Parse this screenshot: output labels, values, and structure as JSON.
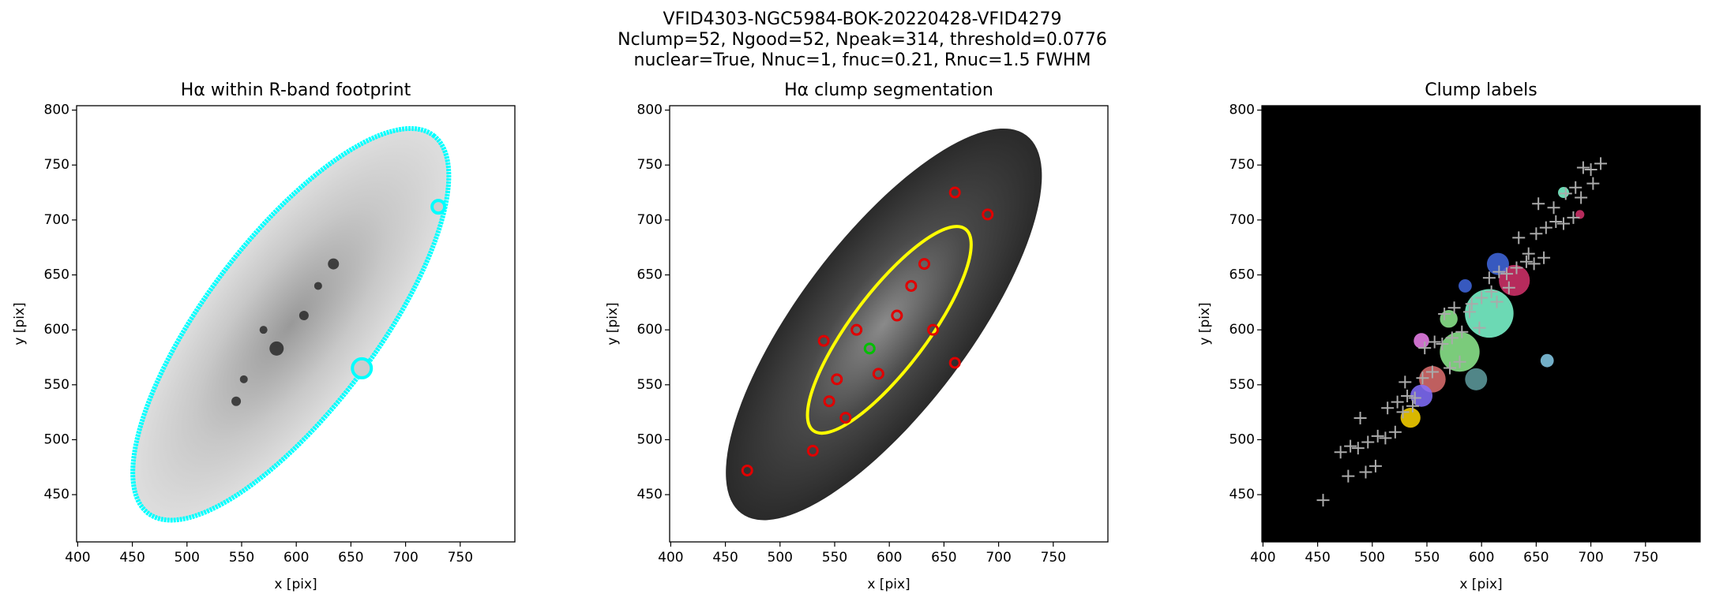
{
  "figure_title": [
    "VFID4303-NGC5984-BOK-20220428-VFID4279",
    "Nclump=52, Ngood=52, Npeak=314, threshold=0.0776",
    "nuclear=True, Nnuc=1, fnuc=0.21, Rnuc=1.5 FWHM"
  ],
  "chart_data": [
    {
      "type": "image",
      "title": "Hα within R-band footprint",
      "x_label": "x [pix]",
      "y_label": "y [pix]",
      "xlim": [
        399,
        800
      ],
      "ylim": [
        407,
        804
      ],
      "xticks": [
        400,
        450,
        500,
        550,
        600,
        650,
        700,
        750
      ],
      "yticks": [
        450,
        500,
        550,
        600,
        650,
        700,
        750,
        800
      ]
    },
    {
      "type": "image",
      "title": "Hα clump segmentation",
      "x_label": "x [pix]",
      "y_label": "y [pix]",
      "xlim": [
        399,
        800
      ],
      "ylim": [
        407,
        804
      ],
      "xticks": [
        400,
        450,
        500,
        550,
        600,
        650,
        700,
        750
      ],
      "yticks": [
        450,
        500,
        550,
        600,
        650,
        700,
        750,
        800
      ]
    },
    {
      "type": "image",
      "title": "Clump labels",
      "x_label": "x [pix]",
      "y_label": "y [pix]",
      "xlim": [
        399,
        800
      ],
      "ylim": [
        407,
        804
      ],
      "xticks": [
        400,
        450,
        500,
        550,
        600,
        650,
        700,
        750
      ],
      "yticks": [
        450,
        500,
        550,
        600,
        650,
        700,
        750,
        800
      ]
    }
  ]
}
